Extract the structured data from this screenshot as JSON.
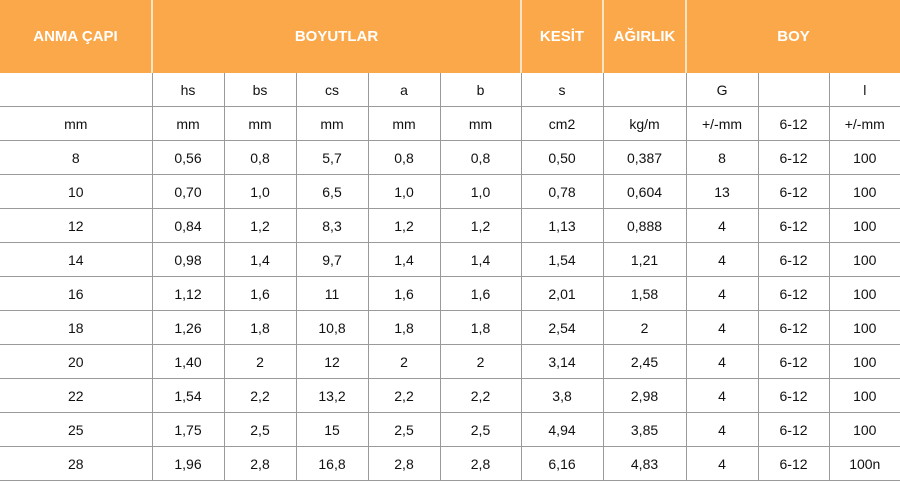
{
  "header": [
    {
      "label": "ANMA ÇAPI",
      "span": 1
    },
    {
      "label": "BOYUTLAR",
      "span": 5
    },
    {
      "label": "KESİT",
      "span": 1
    },
    {
      "label": "AĞIRLIK",
      "span": 1
    },
    {
      "label": "BOY",
      "span": 3
    }
  ],
  "symbols": [
    "",
    "hs",
    "bs",
    "cs",
    "a",
    "b",
    "s",
    "",
    "G",
    "",
    "l"
  ],
  "units": [
    "mm",
    "mm",
    "mm",
    "mm",
    "mm",
    "mm",
    "cm2",
    "kg/m",
    "+/-mm",
    "6-12",
    "+/-mm"
  ],
  "rows": [
    [
      "8",
      "0,56",
      "0,8",
      "5,7",
      "0,8",
      "0,8",
      "0,50",
      "0,387",
      "8",
      "6-12",
      "100"
    ],
    [
      "10",
      "0,70",
      "1,0",
      "6,5",
      "1,0",
      "1,0",
      "0,78",
      "0,604",
      "13",
      "6-12",
      "100"
    ],
    [
      "12",
      "0,84",
      "1,2",
      "8,3",
      "1,2",
      "1,2",
      "1,13",
      "0,888",
      "4",
      "6-12",
      "100"
    ],
    [
      "14",
      "0,98",
      "1,4",
      "9,7",
      "1,4",
      "1,4",
      "1,54",
      "1,21",
      "4",
      "6-12",
      "100"
    ],
    [
      "16",
      "1,12",
      "1,6",
      "11",
      "1,6",
      "1,6",
      "2,01",
      "1,58",
      "4",
      "6-12",
      "100"
    ],
    [
      "18",
      "1,26",
      "1,8",
      "10,8",
      "1,8",
      "1,8",
      "2,54",
      "2",
      "4",
      "6-12",
      "100"
    ],
    [
      "20",
      "1,40",
      "2",
      "12",
      "2",
      "2",
      "3,14",
      "2,45",
      "4",
      "6-12",
      "100"
    ],
    [
      "22",
      "1,54",
      "2,2",
      "13,2",
      "2,2",
      "2,2",
      "3,8",
      "2,98",
      "4",
      "6-12",
      "100"
    ],
    [
      "25",
      "1,75",
      "2,5",
      "15",
      "2,5",
      "2,5",
      "4,94",
      "3,85",
      "4",
      "6-12",
      "100"
    ],
    [
      "28",
      "1,96",
      "2,8",
      "16,8",
      "2,8",
      "2,8",
      "6,16",
      "4,83",
      "4",
      "6-12",
      "100n"
    ]
  ],
  "colors": {
    "header_bg": "#FBA84A",
    "header_text": "#FFFFFF",
    "grid": "#9A9A9A"
  }
}
